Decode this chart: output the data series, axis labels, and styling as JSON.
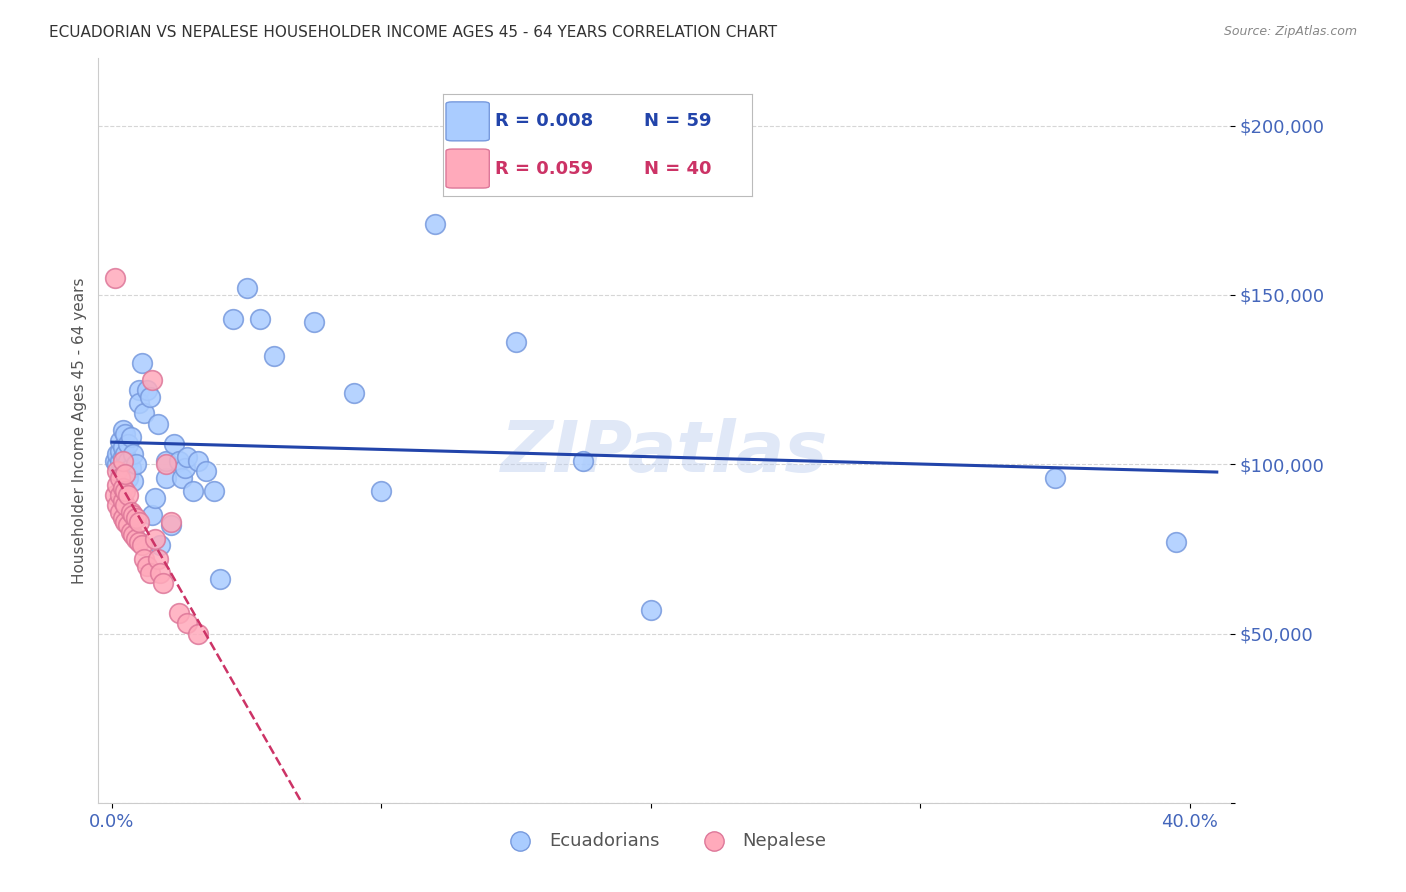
{
  "title": "ECUADORIAN VS NEPALESE HOUSEHOLDER INCOME AGES 45 - 64 YEARS CORRELATION CHART",
  "source": "Source: ZipAtlas.com",
  "ylabel": "Householder Income Ages 45 - 64 years",
  "background_color": "#ffffff",
  "grid_color": "#cccccc",
  "title_color": "#333333",
  "axis_color": "#4466bb",
  "watermark": "ZIPatlas",
  "ecuadorians_color": "#aaccff",
  "ecuadorians_edge": "#7799dd",
  "nepalese_color": "#ffaabb",
  "nepalese_edge": "#dd7799",
  "ecu_line_color": "#2244aa",
  "nep_line_color": "#cc3366",
  "legend_ecu_R": "R = 0.008",
  "legend_ecu_N": "N = 59",
  "legend_nep_R": "R = 0.059",
  "legend_nep_N": "N = 40",
  "ecuadorians_x": [
    0.001,
    0.002,
    0.002,
    0.003,
    0.003,
    0.003,
    0.003,
    0.004,
    0.004,
    0.004,
    0.004,
    0.005,
    0.005,
    0.005,
    0.005,
    0.006,
    0.006,
    0.006,
    0.007,
    0.007,
    0.008,
    0.008,
    0.009,
    0.01,
    0.01,
    0.011,
    0.012,
    0.013,
    0.014,
    0.015,
    0.016,
    0.017,
    0.018,
    0.02,
    0.02,
    0.022,
    0.023,
    0.025,
    0.026,
    0.027,
    0.028,
    0.03,
    0.032,
    0.035,
    0.038,
    0.04,
    0.045,
    0.05,
    0.055,
    0.06,
    0.075,
    0.09,
    0.1,
    0.12,
    0.15,
    0.175,
    0.2,
    0.35,
    0.395
  ],
  "ecuadorians_y": [
    101000,
    100000,
    103000,
    98000,
    101000,
    104000,
    107000,
    99000,
    102000,
    105000,
    110000,
    97000,
    100000,
    103000,
    109000,
    96000,
    101000,
    106000,
    99000,
    108000,
    95000,
    103000,
    100000,
    122000,
    118000,
    130000,
    115000,
    122000,
    120000,
    85000,
    90000,
    112000,
    76000,
    96000,
    101000,
    82000,
    106000,
    101000,
    96000,
    99000,
    102000,
    92000,
    101000,
    98000,
    92000,
    66000,
    143000,
    152000,
    143000,
    132000,
    142000,
    121000,
    92000,
    171000,
    136000,
    101000,
    57000,
    96000,
    77000
  ],
  "nepalese_x": [
    0.001,
    0.001,
    0.002,
    0.002,
    0.002,
    0.003,
    0.003,
    0.003,
    0.004,
    0.004,
    0.004,
    0.004,
    0.005,
    0.005,
    0.005,
    0.005,
    0.006,
    0.006,
    0.007,
    0.007,
    0.008,
    0.008,
    0.009,
    0.009,
    0.01,
    0.01,
    0.011,
    0.012,
    0.013,
    0.014,
    0.015,
    0.016,
    0.017,
    0.018,
    0.019,
    0.02,
    0.022,
    0.025,
    0.028,
    0.032
  ],
  "nepalese_y": [
    155000,
    91000,
    88000,
    94000,
    98000,
    86000,
    91000,
    96000,
    84000,
    89000,
    93000,
    101000,
    83000,
    88000,
    92000,
    97000,
    82000,
    91000,
    80000,
    86000,
    79000,
    85000,
    78000,
    84000,
    77000,
    83000,
    76000,
    72000,
    70000,
    68000,
    125000,
    78000,
    72000,
    68000,
    65000,
    100000,
    83000,
    56000,
    53000,
    50000
  ],
  "xlim": [
    -0.005,
    0.415
  ],
  "ylim": [
    0,
    220000
  ],
  "x_ticks": [
    0.0,
    0.1,
    0.2,
    0.3,
    0.4
  ],
  "x_tick_labels": [
    "0.0%",
    "",
    "",
    "",
    "40.0%"
  ],
  "y_ticks": [
    0,
    50000,
    100000,
    150000,
    200000
  ],
  "y_tick_labels": [
    "",
    "$50,000",
    "$100,000",
    "$150,000",
    "$200,000"
  ]
}
